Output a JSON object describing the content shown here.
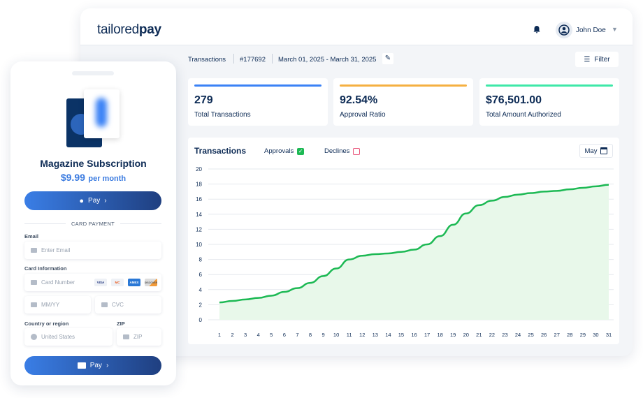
{
  "header": {
    "logo_light": "tailored",
    "logo_bold": "pay",
    "user": "John Doe"
  },
  "toolbar": {
    "section": "Transactions",
    "id": "#177692",
    "date_range": "March 01, 2025 - March 31, 2025",
    "filter": "Filter"
  },
  "kpis": [
    {
      "value": "279",
      "label": "Total Transactions",
      "color": "#3b82f6"
    },
    {
      "value": "92.54%",
      "label": "Approval Ratio",
      "color": "#f5b041"
    },
    {
      "value": "$76,501.00",
      "label": "Total Amount Authorized",
      "color": "#3ee8a8"
    }
  ],
  "chart_card": {
    "title": "Transactions",
    "approvals": "Approvals",
    "declines": "Declines",
    "month": "May"
  },
  "chart_data": {
    "type": "area",
    "title": "Transactions",
    "x": [
      1,
      2,
      3,
      4,
      5,
      6,
      7,
      8,
      9,
      10,
      11,
      12,
      13,
      14,
      15,
      16,
      17,
      18,
      19,
      20,
      21,
      22,
      23,
      24,
      25,
      26,
      27,
      28,
      29,
      30,
      31
    ],
    "series": [
      {
        "name": "Approvals",
        "color": "#1db954",
        "values": [
          2.3,
          2.5,
          2.7,
          2.9,
          3.2,
          3.7,
          4.2,
          4.9,
          5.8,
          6.8,
          8.0,
          8.5,
          8.7,
          8.8,
          9.0,
          9.3,
          10.0,
          11.1,
          12.6,
          14.1,
          15.2,
          15.8,
          16.3,
          16.6,
          16.8,
          17.0,
          17.1,
          17.3,
          17.5,
          17.7,
          17.9
        ]
      }
    ],
    "yticks": [
      0,
      2,
      4,
      6,
      8,
      10,
      12,
      14,
      16,
      18,
      20
    ],
    "ylim": [
      0,
      20
    ],
    "grid": true
  },
  "checkout": {
    "product": "Magazine Subscription",
    "price": "$9.99",
    "period": "per month",
    "apple_pay": "Pay",
    "divider": "CARD PAYMENT",
    "email_label": "Email",
    "email_placeholder": "Enter Email",
    "card_label": "Card Information",
    "card_placeholder": "Card Number",
    "brands": [
      "VISA",
      "MC",
      "AMEX",
      "DISCOVER"
    ],
    "expiry_placeholder": "MM/YY",
    "cvc_placeholder": "CVC",
    "country_label": "Country or region",
    "country_value": "United States",
    "zip_label": "ZIP",
    "zip_placeholder": "ZIP",
    "pay": "Pay"
  }
}
